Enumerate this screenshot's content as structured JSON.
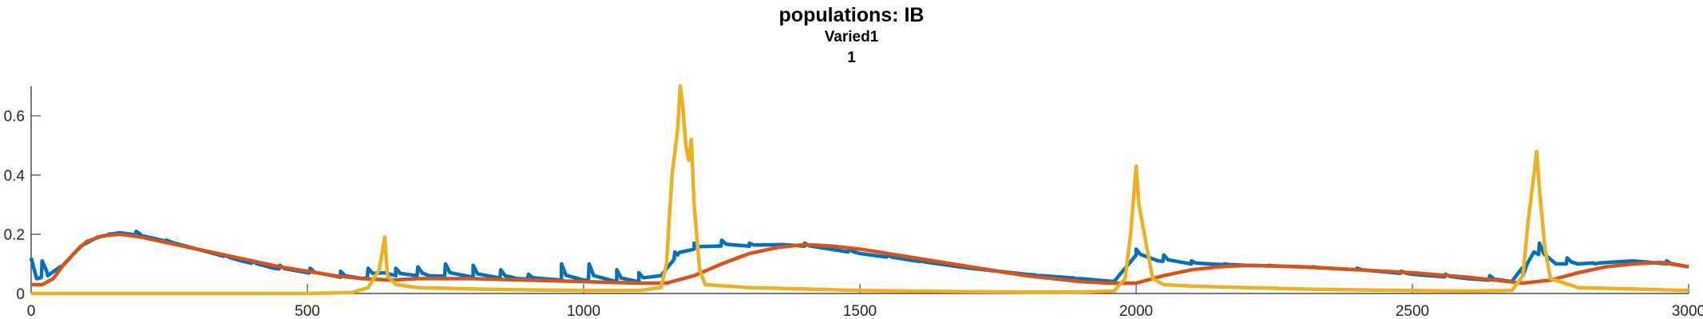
{
  "chart_data": {
    "type": "line",
    "title": "populations: IB",
    "subtitle": "Varied1",
    "subtitle2": "1",
    "xlabel": "",
    "ylabel": "",
    "xlim": [
      0,
      3000
    ],
    "ylim": [
      0,
      0.7
    ],
    "xticks": [
      0,
      500,
      1000,
      1500,
      2000,
      2500,
      3000
    ],
    "xtick_labels": [
      "0",
      "500",
      "1000",
      "1500",
      "2000",
      "2500",
      "3000"
    ],
    "yticks": [
      0,
      0.2,
      0.4,
      0.6
    ],
    "ytick_labels": [
      "0",
      "0.2",
      "0.4",
      "0.6"
    ],
    "grid": false,
    "legend": "none",
    "series": [
      {
        "color": "#0072BD",
        "points": [
          [
            0,
            0.12
          ],
          [
            10,
            0.05
          ],
          [
            30,
            0.06
          ],
          [
            60,
            0.1
          ],
          [
            90,
            0.16
          ],
          [
            120,
            0.19
          ],
          [
            160,
            0.205
          ],
          [
            200,
            0.195
          ],
          [
            260,
            0.17
          ],
          [
            320,
            0.14
          ],
          [
            380,
            0.11
          ],
          [
            440,
            0.085
          ],
          [
            500,
            0.07
          ],
          [
            560,
            0.055
          ],
          [
            600,
            0.05
          ],
          [
            640,
            0.07
          ],
          [
            660,
            0.06
          ],
          [
            720,
            0.06
          ],
          [
            800,
            0.055
          ],
          [
            880,
            0.05
          ],
          [
            960,
            0.045
          ],
          [
            1000,
            0.045
          ],
          [
            1060,
            0.04
          ],
          [
            1100,
            0.04
          ],
          [
            1140,
            0.06
          ],
          [
            1170,
            0.13
          ],
          [
            1200,
            0.15
          ],
          [
            1240,
            0.16
          ],
          [
            1300,
            0.16
          ],
          [
            1360,
            0.165
          ],
          [
            1400,
            0.16
          ],
          [
            1500,
            0.135
          ],
          [
            1600,
            0.11
          ],
          [
            1700,
            0.085
          ],
          [
            1800,
            0.065
          ],
          [
            1900,
            0.05
          ],
          [
            1960,
            0.04
          ],
          [
            2000,
            0.13
          ],
          [
            2040,
            0.11
          ],
          [
            2100,
            0.1
          ],
          [
            2200,
            0.095
          ],
          [
            2300,
            0.09
          ],
          [
            2400,
            0.08
          ],
          [
            2500,
            0.065
          ],
          [
            2600,
            0.05
          ],
          [
            2680,
            0.04
          ],
          [
            2720,
            0.14
          ],
          [
            2760,
            0.1
          ],
          [
            2800,
            0.1
          ],
          [
            2900,
            0.11
          ],
          [
            2960,
            0.1
          ],
          [
            3000,
            0.09
          ]
        ],
        "spikes": [
          [
            20,
            0.11
          ],
          [
            55,
            0.09
          ],
          [
            140,
            0.2
          ],
          [
            190,
            0.21
          ],
          [
            245,
            0.18
          ],
          [
            300,
            0.15
          ],
          [
            350,
            0.13
          ],
          [
            400,
            0.11
          ],
          [
            450,
            0.095
          ],
          [
            505,
            0.085
          ],
          [
            560,
            0.075
          ],
          [
            610,
            0.085
          ],
          [
            660,
            0.085
          ],
          [
            700,
            0.09
          ],
          [
            750,
            0.1
          ],
          [
            800,
            0.095
          ],
          [
            850,
            0.08
          ],
          [
            900,
            0.065
          ],
          [
            960,
            0.1
          ],
          [
            1010,
            0.1
          ],
          [
            1060,
            0.08
          ],
          [
            1100,
            0.07
          ],
          [
            1165,
            0.14
          ],
          [
            1200,
            0.17
          ],
          [
            1250,
            0.18
          ],
          [
            1300,
            0.17
          ],
          [
            1400,
            0.17
          ],
          [
            1480,
            0.15
          ],
          [
            1550,
            0.13
          ],
          [
            1610,
            0.11
          ],
          [
            1680,
            0.09
          ],
          [
            1750,
            0.075
          ],
          [
            1820,
            0.06
          ],
          [
            1890,
            0.05
          ],
          [
            2000,
            0.15
          ],
          [
            2050,
            0.13
          ],
          [
            2100,
            0.11
          ],
          [
            2160,
            0.1
          ],
          [
            2240,
            0.095
          ],
          [
            2320,
            0.09
          ],
          [
            2400,
            0.085
          ],
          [
            2480,
            0.075
          ],
          [
            2560,
            0.065
          ],
          [
            2640,
            0.06
          ],
          [
            2700,
            0.06
          ],
          [
            2730,
            0.17
          ],
          [
            2780,
            0.12
          ],
          [
            2830,
            0.1
          ],
          [
            2900,
            0.11
          ],
          [
            2960,
            0.11
          ]
        ]
      },
      {
        "color": "#D95319",
        "points": [
          [
            0,
            0.03
          ],
          [
            20,
            0.03
          ],
          [
            40,
            0.05
          ],
          [
            60,
            0.1
          ],
          [
            80,
            0.14
          ],
          [
            100,
            0.175
          ],
          [
            130,
            0.195
          ],
          [
            160,
            0.2
          ],
          [
            200,
            0.19
          ],
          [
            250,
            0.17
          ],
          [
            300,
            0.15
          ],
          [
            350,
            0.13
          ],
          [
            400,
            0.11
          ],
          [
            450,
            0.09
          ],
          [
            500,
            0.075
          ],
          [
            550,
            0.06
          ],
          [
            600,
            0.05
          ],
          [
            650,
            0.045
          ],
          [
            700,
            0.05
          ],
          [
            800,
            0.05
          ],
          [
            900,
            0.045
          ],
          [
            1000,
            0.04
          ],
          [
            1100,
            0.035
          ],
          [
            1150,
            0.035
          ],
          [
            1200,
            0.06
          ],
          [
            1250,
            0.1
          ],
          [
            1300,
            0.135
          ],
          [
            1350,
            0.155
          ],
          [
            1400,
            0.165
          ],
          [
            1450,
            0.16
          ],
          [
            1500,
            0.15
          ],
          [
            1550,
            0.135
          ],
          [
            1600,
            0.12
          ],
          [
            1650,
            0.105
          ],
          [
            1700,
            0.09
          ],
          [
            1750,
            0.075
          ],
          [
            1800,
            0.06
          ],
          [
            1850,
            0.05
          ],
          [
            1900,
            0.04
          ],
          [
            1950,
            0.035
          ],
          [
            2000,
            0.035
          ],
          [
            2050,
            0.06
          ],
          [
            2100,
            0.08
          ],
          [
            2150,
            0.09
          ],
          [
            2200,
            0.095
          ],
          [
            2300,
            0.09
          ],
          [
            2400,
            0.08
          ],
          [
            2500,
            0.07
          ],
          [
            2600,
            0.055
          ],
          [
            2650,
            0.045
          ],
          [
            2700,
            0.035
          ],
          [
            2750,
            0.045
          ],
          [
            2800,
            0.07
          ],
          [
            2850,
            0.09
          ],
          [
            2900,
            0.1
          ],
          [
            2950,
            0.105
          ],
          [
            3000,
            0.09
          ]
        ]
      },
      {
        "color": "#EDB120",
        "points": [
          [
            0,
            0.0
          ],
          [
            500,
            0.0
          ],
          [
            580,
            0.003
          ],
          [
            610,
            0.02
          ],
          [
            630,
            0.08
          ],
          [
            640,
            0.19
          ],
          [
            645,
            0.06
          ],
          [
            660,
            0.03
          ],
          [
            700,
            0.02
          ],
          [
            800,
            0.015
          ],
          [
            900,
            0.012
          ],
          [
            1000,
            0.01
          ],
          [
            1100,
            0.01
          ],
          [
            1140,
            0.02
          ],
          [
            1150,
            0.1
          ],
          [
            1160,
            0.4
          ],
          [
            1170,
            0.55
          ],
          [
            1175,
            0.7
          ],
          [
            1180,
            0.62
          ],
          [
            1185,
            0.5
          ],
          [
            1190,
            0.45
          ],
          [
            1195,
            0.52
          ],
          [
            1200,
            0.3
          ],
          [
            1210,
            0.08
          ],
          [
            1220,
            0.03
          ],
          [
            1300,
            0.02
          ],
          [
            1400,
            0.015
          ],
          [
            1500,
            0.01
          ],
          [
            1600,
            0.008
          ],
          [
            1700,
            0.006
          ],
          [
            1800,
            0.005
          ],
          [
            1900,
            0.005
          ],
          [
            1960,
            0.008
          ],
          [
            1980,
            0.05
          ],
          [
            1990,
            0.2
          ],
          [
            2000,
            0.43
          ],
          [
            2005,
            0.3
          ],
          [
            2010,
            0.25
          ],
          [
            2020,
            0.15
          ],
          [
            2030,
            0.05
          ],
          [
            2050,
            0.03
          ],
          [
            2100,
            0.025
          ],
          [
            2200,
            0.02
          ],
          [
            2300,
            0.015
          ],
          [
            2400,
            0.012
          ],
          [
            2500,
            0.01
          ],
          [
            2600,
            0.008
          ],
          [
            2680,
            0.01
          ],
          [
            2700,
            0.06
          ],
          [
            2710,
            0.25
          ],
          [
            2720,
            0.4
          ],
          [
            2725,
            0.48
          ],
          [
            2730,
            0.35
          ],
          [
            2740,
            0.15
          ],
          [
            2750,
            0.05
          ],
          [
            2800,
            0.02
          ],
          [
            2900,
            0.015
          ],
          [
            3000,
            0.01
          ]
        ]
      }
    ]
  }
}
